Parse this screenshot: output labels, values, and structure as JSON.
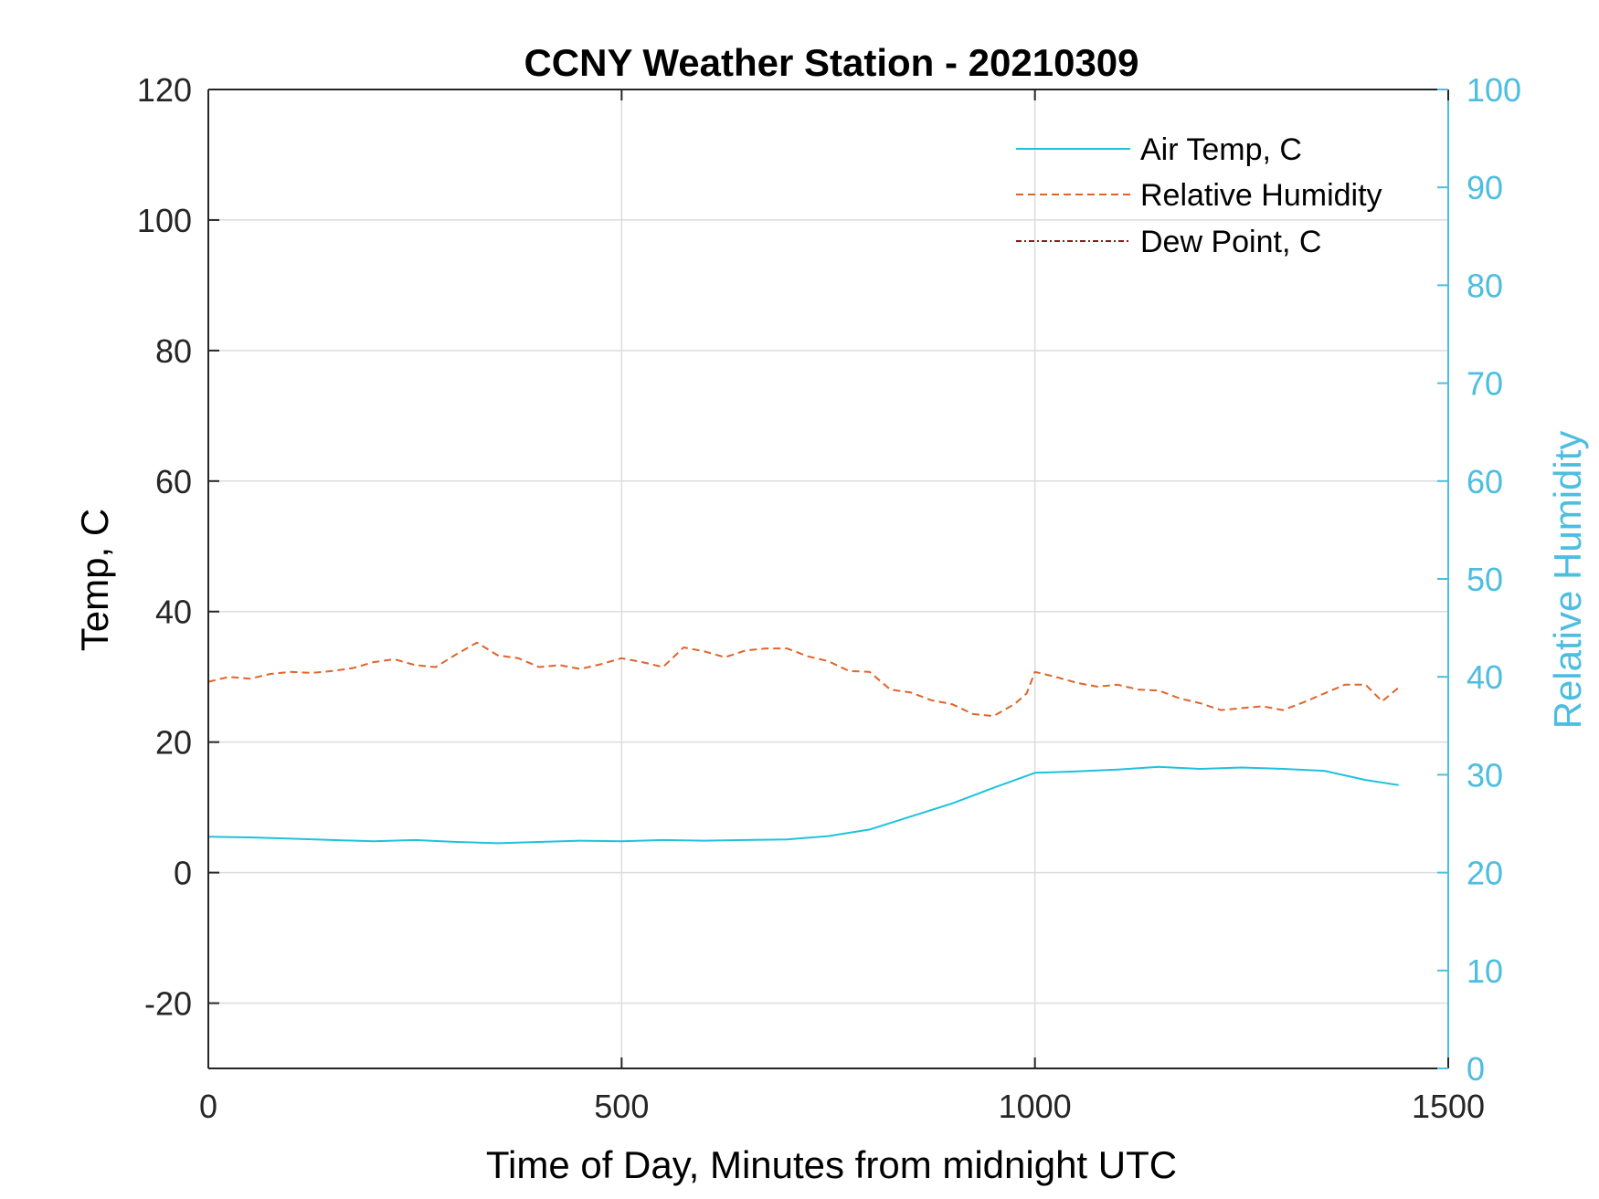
{
  "chart_data": {
    "type": "line",
    "title": "CCNY Weather Station - 20210309",
    "xlabel": "Time of Day, Minutes from midnight UTC",
    "ylabel_left": "Temp, C",
    "ylabel_right": "Relative Humidity",
    "xlim": [
      0,
      1500
    ],
    "ylim_left": [
      -30,
      120
    ],
    "ylim_right": [
      0,
      100
    ],
    "x_ticks": [
      0,
      500,
      1000,
      1500
    ],
    "y_ticks_left": [
      -20,
      0,
      20,
      40,
      60,
      80,
      100,
      120
    ],
    "y_ticks_right": [
      0,
      10,
      20,
      30,
      40,
      50,
      60,
      70,
      80,
      90,
      100
    ],
    "grid": true,
    "legend_position": "top-right",
    "colors": {
      "air_temp": "#1fc2dc",
      "humidity": "#e0642a",
      "dew_point": "#8b1a1a",
      "right_axis": "#4dbde0",
      "grid": "#dcdcdc"
    },
    "series": [
      {
        "name": "Air Temp, C",
        "axis": "left",
        "style": "solid",
        "x": [
          0,
          50,
          100,
          150,
          200,
          250,
          300,
          350,
          400,
          450,
          500,
          550,
          600,
          650,
          700,
          750,
          800,
          850,
          900,
          950,
          1000,
          1050,
          1100,
          1150,
          1200,
          1250,
          1300,
          1350,
          1400,
          1440
        ],
        "y": [
          5.5,
          5.4,
          5.2,
          5.0,
          4.8,
          5.0,
          4.7,
          4.5,
          4.7,
          4.9,
          4.8,
          5.0,
          4.9,
          5.0,
          5.1,
          5.6,
          6.6,
          8.6,
          10.6,
          13.0,
          15.3,
          15.5,
          15.8,
          16.2,
          15.9,
          16.1,
          15.9,
          15.6,
          14.2,
          13.4
        ]
      },
      {
        "name": "Relative Humidity",
        "axis": "right",
        "style": "dashed",
        "x": [
          0,
          25,
          50,
          75,
          100,
          125,
          150,
          175,
          200,
          225,
          250,
          275,
          300,
          325,
          350,
          375,
          400,
          425,
          450,
          475,
          500,
          525,
          550,
          575,
          600,
          625,
          650,
          675,
          700,
          725,
          750,
          775,
          800,
          825,
          850,
          875,
          900,
          925,
          950,
          975,
          990,
          1000,
          1025,
          1050,
          1075,
          1100,
          1125,
          1150,
          1175,
          1200,
          1225,
          1250,
          1275,
          1300,
          1325,
          1350,
          1375,
          1400,
          1420,
          1440
        ],
        "y": [
          39.5,
          40.0,
          39.8,
          40.3,
          40.5,
          40.4,
          40.6,
          40.9,
          41.5,
          41.8,
          41.2,
          41.0,
          42.3,
          43.5,
          42.2,
          41.9,
          41.0,
          41.2,
          40.8,
          41.3,
          41.9,
          41.5,
          41.0,
          43.0,
          42.6,
          42.0,
          42.7,
          42.9,
          42.9,
          42.1,
          41.6,
          40.6,
          40.5,
          38.7,
          38.4,
          37.6,
          37.2,
          36.2,
          36.0,
          37.2,
          38.3,
          40.5,
          40.0,
          39.4,
          39.0,
          39.2,
          38.7,
          38.6,
          37.8,
          37.3,
          36.6,
          36.8,
          37.0,
          36.6,
          37.4,
          38.3,
          39.2,
          39.2,
          37.5,
          38.9
        ]
      },
      {
        "name": "Dew Point, C",
        "axis": "left",
        "style": "dashdot",
        "x": [],
        "y": []
      }
    ]
  }
}
